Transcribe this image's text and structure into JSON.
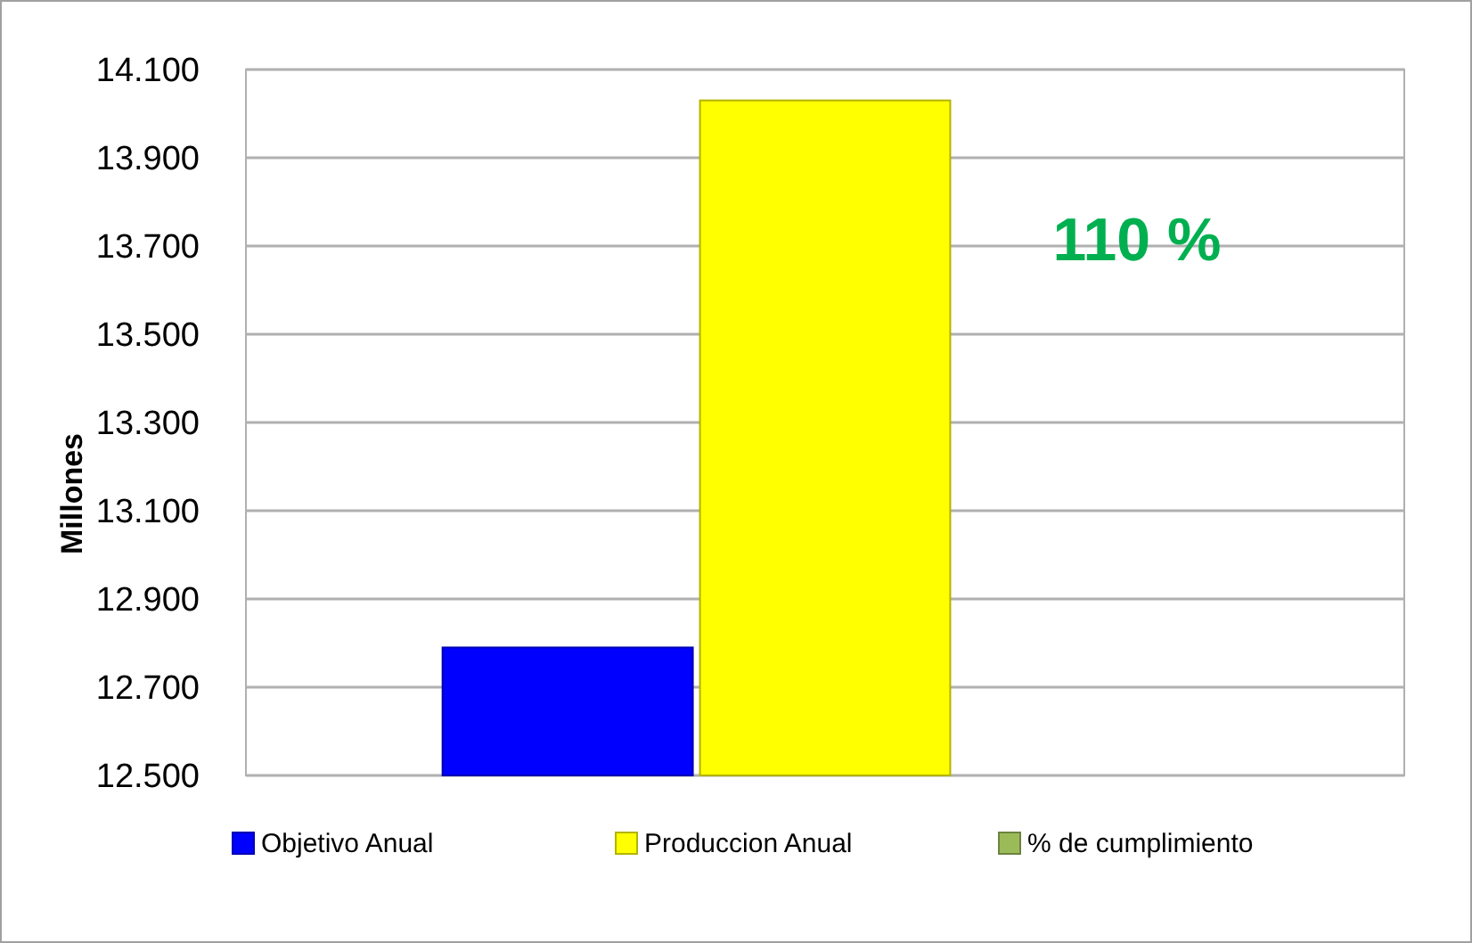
{
  "chart_data": {
    "type": "bar",
    "ylabel": "Millones",
    "categories": [
      null
    ],
    "series": [
      {
        "name": "Objetivo Anual",
        "color": "#0000ff",
        "values": [
          12790
        ]
      },
      {
        "name": "Produccion Anual",
        "color": "#ffff00",
        "values": [
          14030
        ]
      },
      {
        "name": "% de cumplimiento",
        "color": "#9bbb59",
        "values": [
          null
        ]
      }
    ],
    "ylim": [
      12500,
      14100
    ],
    "yticks": [
      {
        "value": 12500,
        "label": "12.500"
      },
      {
        "value": 12700,
        "label": "12.700"
      },
      {
        "value": 12900,
        "label": "12.900"
      },
      {
        "value": 13100,
        "label": "13.100"
      },
      {
        "value": 13300,
        "label": "13.300"
      },
      {
        "value": 13500,
        "label": "13.500"
      },
      {
        "value": 13700,
        "label": "13.700"
      },
      {
        "value": 13900,
        "label": "13.900"
      },
      {
        "value": 14100,
        "label": "14.100"
      }
    ],
    "grid": "y",
    "legend": "bottom",
    "annotations": [
      "110 %"
    ]
  }
}
